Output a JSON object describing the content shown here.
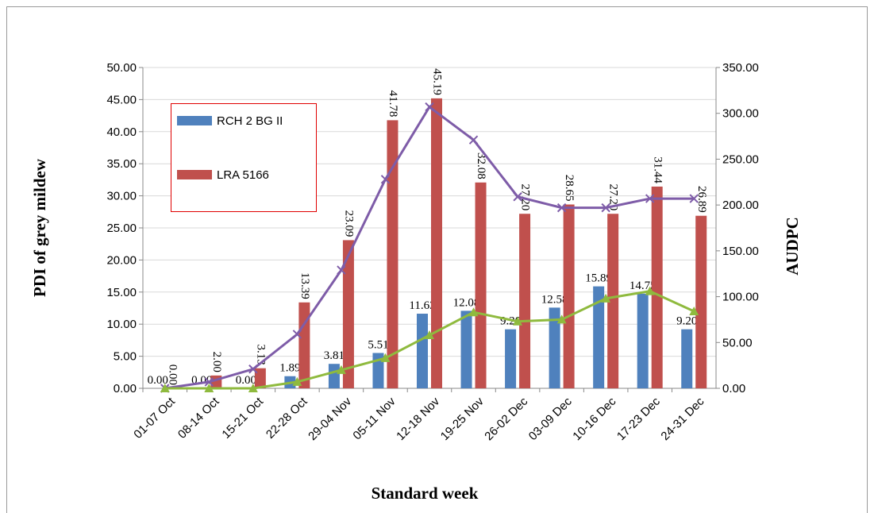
{
  "chart_data": {
    "type": "bar",
    "categories": [
      "01-07 Oct",
      "08-14 Oct",
      "15-21 Oct",
      "22-28 Oct",
      "29-04 Nov",
      "05-11 Nov",
      "12-18 Nov",
      "19-25 Nov",
      "26-02 Dec",
      "03-09 Dec",
      "10-16 Dec",
      "17-23 Dec",
      "24-31 Dec"
    ],
    "x_label": "Standard week",
    "y_label": "PDI of grey mildew",
    "y2_label": "AUDPC",
    "series": [
      {
        "name": "RCH 2 BG II",
        "type": "bar",
        "color": "#4f81bd",
        "values": [
          0,
          0,
          0,
          1.89,
          3.81,
          5.51,
          11.63,
          12.08,
          9.2,
          12.58,
          15.89,
          14.75,
          9.2
        ],
        "value_labels": [
          "0.00",
          "0.00",
          "0.00",
          "1.89",
          "3.81",
          "5.51",
          "11.63",
          "12.08",
          "9.20",
          "12.58",
          "15.89",
          "14.75",
          "9.20"
        ]
      },
      {
        "name": "LRA 5166",
        "type": "bar",
        "color": "#c0504d",
        "values": [
          0,
          2,
          3.13,
          13.39,
          23.09,
          41.78,
          45.19,
          32.08,
          27.2,
          28.65,
          27.2,
          31.44,
          26.89
        ],
        "value_labels": [
          "0.00",
          "2.00",
          "3.13",
          "13.39",
          "23.09",
          "41.78",
          "45.19",
          "32.08",
          "27.20",
          "28.65",
          "27.20",
          "31.44",
          "26.89"
        ]
      },
      {
        "type": "line",
        "axis": "y2",
        "color": "#7e5ca8",
        "marker": "x",
        "values": [
          0,
          7,
          21,
          59,
          129,
          228,
          307,
          271,
          209,
          197,
          197,
          207,
          207
        ]
      },
      {
        "type": "line",
        "axis": "y2",
        "color": "#8fba3e",
        "marker": "triangle",
        "values": [
          0,
          0,
          0,
          7,
          20,
          33,
          58,
          83,
          73,
          75,
          98,
          106,
          84
        ]
      }
    ],
    "ylim": [
      0,
      50
    ],
    "yticks": [
      {
        "value": 0,
        "label": "0.00"
      },
      {
        "value": 5,
        "label": "5.00"
      },
      {
        "value": 10,
        "label": "10.00"
      },
      {
        "value": 15,
        "label": "15.00"
      },
      {
        "value": 20,
        "label": "20.00"
      },
      {
        "value": 25,
        "label": "25.00"
      },
      {
        "value": 30,
        "label": "30.00"
      },
      {
        "value": 35,
        "label": "35.00"
      },
      {
        "value": 40,
        "label": "40.00"
      },
      {
        "value": 45,
        "label": "45.00"
      },
      {
        "value": 50,
        "label": "50.00"
      }
    ],
    "y2lim": [
      0,
      350
    ],
    "y2ticks": [
      {
        "value": 0,
        "label": "0.00"
      },
      {
        "value": 50,
        "label": "50.00"
      },
      {
        "value": 100,
        "label": "100.00"
      },
      {
        "value": 150,
        "label": "150.00"
      },
      {
        "value": 200,
        "label": "200.00"
      },
      {
        "value": 250,
        "label": "250.00"
      },
      {
        "value": 300,
        "label": "300.00"
      },
      {
        "value": 350,
        "label": "350.00"
      }
    ],
    "grid": true,
    "legend": "upper-left"
  }
}
